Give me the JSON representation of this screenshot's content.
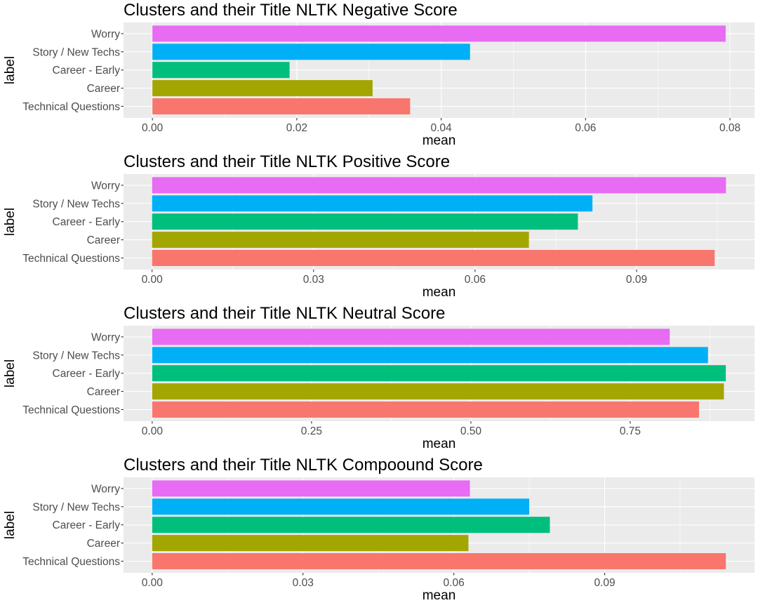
{
  "chart_data": [
    {
      "type": "bar",
      "orientation": "horizontal",
      "title": "Clusters and their Title NLTK Negative Score",
      "xlabel": "mean",
      "ylabel": "label",
      "categories": [
        "Technical Questions",
        "Career",
        "Career - Early",
        "Story / New Techs",
        "Worry"
      ],
      "values": [
        0.0357,
        0.0305,
        0.019,
        0.044,
        0.0794
      ],
      "colors": [
        "#F8766D",
        "#A3A500",
        "#00BF7D",
        "#00B0F6",
        "#E76BF3"
      ],
      "xlim": [
        -0.004,
        0.0834
      ],
      "xticks": [
        0,
        0.02,
        0.04,
        0.06,
        0.08
      ],
      "xtick_labels": [
        "0.00",
        "0.02",
        "0.04",
        "0.06",
        "0.08"
      ],
      "grid": true,
      "legend": "none"
    },
    {
      "type": "bar",
      "orientation": "horizontal",
      "title": "Clusters and their Title NLTK Positive Score",
      "xlabel": "mean",
      "ylabel": "label",
      "categories": [
        "Technical Questions",
        "Career",
        "Career - Early",
        "Story / New Techs",
        "Worry"
      ],
      "values": [
        0.1045,
        0.07,
        0.0791,
        0.0818,
        0.1066
      ],
      "colors": [
        "#F8766D",
        "#A3A500",
        "#00BF7D",
        "#00B0F6",
        "#E76BF3"
      ],
      "xlim": [
        -0.0053,
        0.1119
      ],
      "xticks": [
        0,
        0.03,
        0.06,
        0.09
      ],
      "xtick_labels": [
        "0.00",
        "0.03",
        "0.06",
        "0.09"
      ],
      "grid": true,
      "legend": "none"
    },
    {
      "type": "bar",
      "orientation": "horizontal",
      "title": "Clusters and their Title NLTK Neutral Score",
      "xlabel": "mean",
      "ylabel": "label",
      "categories": [
        "Technical Questions",
        "Career",
        "Career - Early",
        "Story / New Techs",
        "Worry"
      ],
      "values": [
        0.858,
        0.897,
        0.9,
        0.872,
        0.812
      ],
      "colors": [
        "#F8766D",
        "#A3A500",
        "#00BF7D",
        "#00B0F6",
        "#E76BF3"
      ],
      "xlim": [
        -0.045,
        0.945
      ],
      "xticks": [
        0,
        0.25,
        0.5,
        0.75
      ],
      "xtick_labels": [
        "0.00",
        "0.25",
        "0.50",
        "0.75"
      ],
      "grid": true,
      "legend": "none"
    },
    {
      "type": "bar",
      "orientation": "horizontal",
      "title": "Clusters and their Title NLTK Compoound Score",
      "xlabel": "mean",
      "ylabel": "label",
      "categories": [
        "Technical Questions",
        "Career",
        "Career - Early",
        "Story / New Techs",
        "Worry"
      ],
      "values": [
        0.1141,
        0.0629,
        0.0791,
        0.075,
        0.0632
      ],
      "colors": [
        "#F8766D",
        "#A3A500",
        "#00BF7D",
        "#00B0F6",
        "#E76BF3"
      ],
      "xlim": [
        -0.0057,
        0.1198
      ],
      "xticks": [
        0,
        0.03,
        0.06,
        0.09
      ],
      "xtick_labels": [
        "0.00",
        "0.03",
        "0.06",
        "0.09"
      ],
      "grid": true,
      "legend": "none"
    }
  ]
}
